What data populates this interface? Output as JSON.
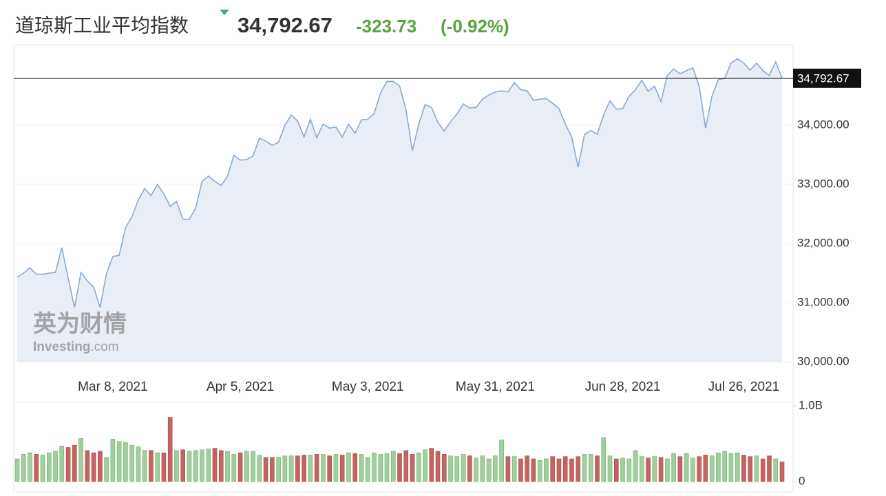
{
  "header": {
    "title": "道琼斯工业平均指数",
    "change": "-323.73",
    "change_pct": "(-0.92%)"
  },
  "watermark": [
    "英为财情",
    "Investing",
    ".com"
  ],
  "chart_data": [
    {
      "type": "line",
      "color": "#86a9d0",
      "fill": "#e9eef6",
      "grid": true,
      "last": {
        "value": 34792.67,
        "label": "34,792.67"
      },
      "categories": [
        null,
        null,
        null,
        null,
        null,
        null,
        null,
        null,
        null,
        null,
        null,
        null,
        null,
        null,
        null,
        "Mar 8, 2021",
        null,
        null,
        null,
        null,
        null,
        null,
        null,
        null,
        null,
        null,
        null,
        null,
        null,
        null,
        null,
        null,
        null,
        null,
        null,
        "Apr 5, 2021",
        null,
        null,
        null,
        null,
        null,
        null,
        null,
        null,
        null,
        null,
        null,
        null,
        null,
        null,
        null,
        null,
        null,
        null,
        null,
        "May 3, 2021",
        null,
        null,
        null,
        null,
        null,
        null,
        null,
        null,
        null,
        null,
        null,
        null,
        null,
        null,
        null,
        null,
        null,
        null,
        null,
        "May 31, 2021",
        null,
        null,
        null,
        null,
        null,
        null,
        null,
        null,
        null,
        null,
        null,
        null,
        null,
        null,
        null,
        null,
        null,
        null,
        null,
        "Jun 28, 2021",
        null,
        null,
        null,
        null,
        null,
        null,
        null,
        null,
        null,
        null,
        null,
        null,
        null,
        null,
        null,
        null,
        null,
        null,
        "Jul 26, 2021",
        null,
        null,
        null,
        null,
        null,
        null
      ],
      "values": [
        31430,
        31500,
        31590,
        31480,
        31480,
        31500,
        31510,
        31930,
        31410,
        30920,
        31510,
        31370,
        31260,
        30920,
        31490,
        31780,
        31800,
        32270,
        32450,
        32740,
        32930,
        32810,
        33000,
        32840,
        32630,
        32710,
        32410,
        32410,
        32600,
        33050,
        33140,
        33050,
        32980,
        33140,
        33490,
        33410,
        33420,
        33480,
        33780,
        33730,
        33660,
        33710,
        34000,
        34170,
        34070,
        33800,
        34100,
        33790,
        34020,
        33950,
        33970,
        33800,
        34020,
        33860,
        34090,
        34100,
        34200,
        34540,
        34740,
        34740,
        34660,
        34260,
        33570,
        34020,
        34350,
        34300,
        34050,
        33900,
        34060,
        34190,
        34360,
        34290,
        34300,
        34440,
        34510,
        34560,
        34580,
        34560,
        34720,
        34600,
        34580,
        34420,
        34440,
        34450,
        34370,
        34280,
        34020,
        33800,
        33290,
        33840,
        33910,
        33850,
        34170,
        34410,
        34270,
        34280,
        34490,
        34600,
        34760,
        34570,
        34660,
        34400,
        34840,
        34950,
        34870,
        34920,
        34970,
        34660,
        33950,
        34490,
        34770,
        34790,
        35050,
        35120,
        35050,
        34930,
        35050,
        34920,
        34840,
        35070,
        34792.67
      ],
      "ylim": [
        30000,
        35360
      ],
      "yticks": [
        {
          "value": 30000,
          "label": "30,000.00"
        },
        {
          "value": 31000,
          "label": "31,000.00"
        },
        {
          "value": 32000,
          "label": "32,000.00"
        },
        {
          "value": 33000,
          "label": "33,000.00"
        },
        {
          "value": 34000,
          "label": "34,000.00"
        }
      ]
    },
    {
      "type": "bar",
      "up_color": "#9fcf9c",
      "down_color": "#c46461",
      "values": [
        0.3,
        0.36,
        0.38,
        0.36,
        0.35,
        0.38,
        0.4,
        0.47,
        0.45,
        0.48,
        0.57,
        0.41,
        0.38,
        0.4,
        0.32,
        0.56,
        0.53,
        0.52,
        0.48,
        0.46,
        0.41,
        0.41,
        0.38,
        0.38,
        0.85,
        0.41,
        0.42,
        0.4,
        0.41,
        0.42,
        0.43,
        0.44,
        0.41,
        0.4,
        0.36,
        0.38,
        0.4,
        0.4,
        0.35,
        0.32,
        0.32,
        0.32,
        0.34,
        0.34,
        0.34,
        0.35,
        0.35,
        0.36,
        0.36,
        0.34,
        0.36,
        0.35,
        0.38,
        0.37,
        0.36,
        0.32,
        0.38,
        0.36,
        0.37,
        0.4,
        0.37,
        0.41,
        0.36,
        0.38,
        0.42,
        0.44,
        0.4,
        0.36,
        0.34,
        0.33,
        0.36,
        0.34,
        0.31,
        0.34,
        0.3,
        0.34,
        0.55,
        0.33,
        0.33,
        0.3,
        0.34,
        0.3,
        0.28,
        0.3,
        0.33,
        0.3,
        0.33,
        0.3,
        0.33,
        0.36,
        0.36,
        0.34,
        0.58,
        0.34,
        0.3,
        0.31,
        0.3,
        0.41,
        0.33,
        0.31,
        0.33,
        0.32,
        0.3,
        0.37,
        0.33,
        0.37,
        0.31,
        0.33,
        0.35,
        0.34,
        0.38,
        0.4,
        0.37,
        0.38,
        0.35,
        0.33,
        0.34,
        0.3,
        0.34,
        0.3,
        0.26
      ],
      "ylim": [
        0,
        1
      ],
      "yticks": [
        0,
        {
          "value": 1,
          "label": "1.0B"
        }
      ]
    }
  ]
}
